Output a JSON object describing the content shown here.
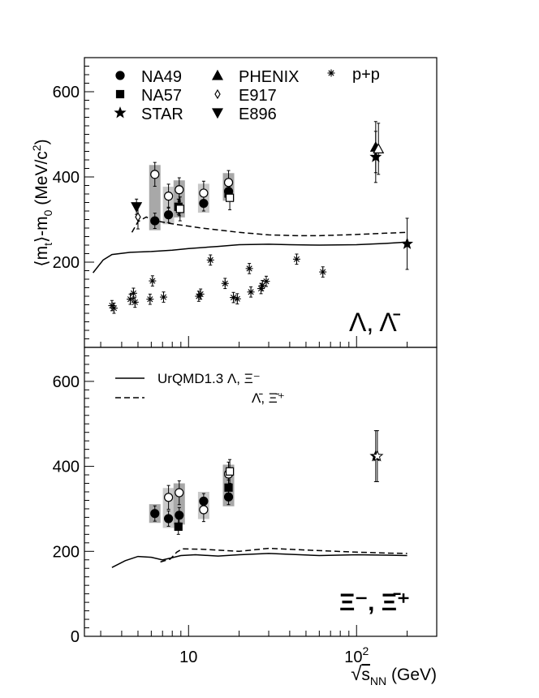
{
  "chart_data": [
    {
      "panel": "top",
      "type": "scatter",
      "ylabel_parts": [
        "⟨m",
        "t",
        "⟩-m",
        "0",
        " (MeV/c",
        "2",
        ")"
      ],
      "yticks": [
        200,
        400,
        600
      ],
      "ylim": [
        0,
        680
      ],
      "xscale": "log",
      "xlim": [
        2.4,
        300
      ],
      "particle_label": "Λ, Λ̄",
      "legend": [
        {
          "label": "NA49",
          "marker": "circle-filled"
        },
        {
          "label": "NA57",
          "marker": "square-filled"
        },
        {
          "label": "STAR",
          "marker": "star-filled"
        },
        {
          "label": "PHENIX",
          "marker": "triangle-up-filled"
        },
        {
          "label": "E917",
          "marker": "diamond-open"
        },
        {
          "label": "E896",
          "marker": "triangle-down-filled"
        },
        {
          "label": "p+p",
          "marker": "asterisk"
        }
      ],
      "series": [
        {
          "name": "NA49",
          "marker": "circle-filled",
          "points": [
            [
              6.3,
              297
            ],
            [
              7.6,
              311
            ],
            [
              8.8,
              327
            ],
            [
              12.3,
              338
            ],
            [
              17.3,
              366
            ]
          ]
        },
        {
          "name": "NA49",
          "marker": "circle-open",
          "points": [
            [
              6.3,
              406
            ],
            [
              7.6,
              355
            ],
            [
              8.8,
              370
            ],
            [
              12.3,
              362
            ],
            [
              17.3,
              387
            ]
          ]
        },
        {
          "name": "NA57",
          "marker": "square-filled",
          "points": [
            [
              8.7,
              330
            ],
            [
              17.3,
              361
            ]
          ]
        },
        {
          "name": "NA57",
          "marker": "square-open",
          "points": [
            [
              8.9,
              325
            ],
            [
              17.6,
              351
            ]
          ]
        },
        {
          "name": "STAR",
          "marker": "star-filled",
          "points": [
            [
              130,
              447
            ],
            [
              200,
              243
            ]
          ]
        },
        {
          "name": "PHENIX",
          "marker": "triangle-up-filled",
          "points": [
            [
              130,
              470
            ]
          ]
        },
        {
          "name": "PHENIX",
          "marker": "triangle-up-open",
          "points": [
            [
              135,
              466
            ]
          ]
        },
        {
          "name": "E917",
          "marker": "diamond-open",
          "points": [
            [
              5.0,
              306
            ]
          ]
        },
        {
          "name": "E896",
          "marker": "triangle-down-filled",
          "points": [
            [
              4.9,
              330
            ]
          ]
        },
        {
          "name": "p+p",
          "marker": "asterisk",
          "points": [
            [
              3.5,
              98
            ],
            [
              3.6,
              92
            ],
            [
              4.5,
              113
            ],
            [
              4.7,
              127
            ],
            [
              4.8,
              106
            ],
            [
              5.9,
              113
            ],
            [
              6.1,
              156
            ],
            [
              7.1,
              118
            ],
            [
              11.5,
              120
            ],
            [
              11.8,
              125
            ],
            [
              13.5,
              205
            ],
            [
              16.5,
              150
            ],
            [
              18.5,
              117
            ],
            [
              19.5,
              114
            ],
            [
              23,
              185
            ],
            [
              23.5,
              130
            ],
            [
              27,
              138
            ],
            [
              27.5,
              145
            ],
            [
              29,
              155
            ],
            [
              44,
              207
            ],
            [
              63,
              177
            ]
          ]
        }
      ],
      "curves": [
        {
          "name": "UrQMD1.3 Λ",
          "style": "solid",
          "points": [
            [
              2.7,
              175
            ],
            [
              3.1,
              205
            ],
            [
              3.5,
              218
            ],
            [
              4.5,
              223
            ],
            [
              6,
              225
            ],
            [
              8,
              228
            ],
            [
              10,
              232
            ],
            [
              15,
              237
            ],
            [
              20,
              241
            ],
            [
              30,
              242
            ],
            [
              40,
              241
            ],
            [
              60,
              240
            ],
            [
              100,
              241
            ],
            [
              150,
              244
            ],
            [
              200,
              247
            ]
          ]
        },
        {
          "name": "UrQMD1.3 Λ̄",
          "style": "dashed",
          "points": [
            [
              4.6,
              270
            ],
            [
              5.0,
              295
            ],
            [
              5.6,
              306
            ],
            [
              6.2,
              298
            ],
            [
              8,
              290
            ],
            [
              12,
              280
            ],
            [
              20,
              270
            ],
            [
              30,
              264
            ],
            [
              45,
              262
            ],
            [
              60,
              262
            ],
            [
              100,
              265
            ],
            [
              150,
              268
            ],
            [
              200,
              270
            ]
          ]
        }
      ]
    },
    {
      "panel": "bottom",
      "type": "scatter",
      "yticks": [
        0,
        200,
        400,
        600
      ],
      "ylim": [
        0,
        680
      ],
      "xscale": "log",
      "xlim": [
        2.4,
        300
      ],
      "xticks": [
        {
          "value": 10,
          "label": "10"
        },
        {
          "value": 100,
          "label": "10",
          "exponent": "2"
        }
      ],
      "xlabel_parts": [
        "√",
        "s",
        "NN",
        " (GeV)"
      ],
      "particle_label": "Ξ⁻, Ξ̄⁺",
      "legend": [
        {
          "label": "UrQMD1.3 Λ, Ξ⁻",
          "style": "solid"
        },
        {
          "label": "Λ̄, Ξ̄⁺",
          "style": "dashed"
        }
      ],
      "series": [
        {
          "name": "NA49",
          "marker": "circle-filled",
          "points": [
            [
              6.3,
              289
            ],
            [
              7.6,
              277
            ],
            [
              8.8,
              285
            ],
            [
              12.3,
              318
            ],
            [
              17.3,
              328
            ]
          ]
        },
        {
          "name": "NA49",
          "marker": "circle-open",
          "points": [
            [
              7.6,
              327
            ],
            [
              8.8,
              338
            ],
            [
              12.3,
              298
            ],
            [
              17.3,
              382
            ]
          ]
        },
        {
          "name": "NA57",
          "marker": "square-filled",
          "points": [
            [
              8.7,
              258
            ],
            [
              17.3,
              350
            ]
          ]
        },
        {
          "name": "NA57",
          "marker": "square-open",
          "points": [
            [
              17.6,
              388
            ]
          ]
        },
        {
          "name": "STAR",
          "marker": "star-filled",
          "points": [
            [
              130,
              424
            ]
          ]
        },
        {
          "name": "STAR",
          "marker": "star-open",
          "points": [
            [
              133,
              424
            ]
          ]
        }
      ],
      "curves": [
        {
          "name": "UrQMD1.3 Ξ⁻",
          "style": "solid",
          "points": [
            [
              3.5,
              162
            ],
            [
              4.2,
              178
            ],
            [
              5,
              188
            ],
            [
              6,
              186
            ],
            [
              7,
              180
            ],
            [
              8,
              185
            ],
            [
              9,
              190
            ],
            [
              11,
              192
            ],
            [
              15,
              189
            ],
            [
              20,
              192
            ],
            [
              30,
              195
            ],
            [
              60,
              190
            ],
            [
              100,
              192
            ],
            [
              150,
              191
            ],
            [
              200,
              190
            ]
          ]
        },
        {
          "name": "UrQMD1.3 Ξ̄⁺",
          "style": "dashed",
          "points": [
            [
              6.8,
              175
            ],
            [
              7.8,
              182
            ],
            [
              8.5,
              198
            ],
            [
              9.2,
              206
            ],
            [
              12,
              205
            ],
            [
              20,
              200
            ],
            [
              30,
              207
            ],
            [
              50,
              203
            ],
            [
              100,
              198
            ],
            [
              150,
              196
            ],
            [
              200,
              195
            ]
          ]
        }
      ]
    }
  ]
}
